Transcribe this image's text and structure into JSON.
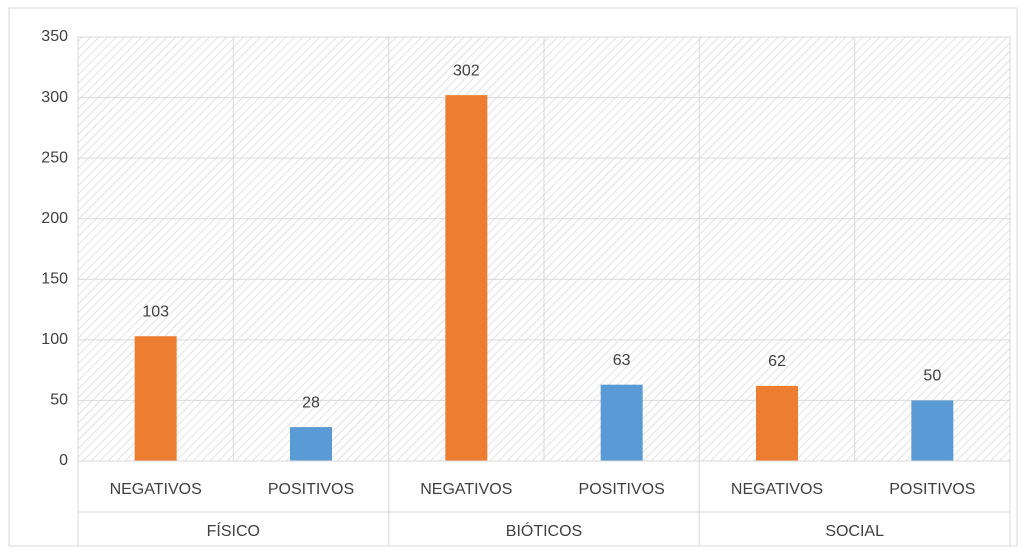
{
  "chart_data": {
    "type": "bar",
    "categories": [
      "NEGATIVOS",
      "POSITIVOS",
      "NEGATIVOS",
      "POSITIVOS",
      "NEGATIVOS",
      "POSITIVOS"
    ],
    "groups": [
      "FÍSICO",
      "BIÓTICOS",
      "SOCIAL"
    ],
    "values": [
      103,
      28,
      302,
      63,
      62,
      50
    ],
    "colors": [
      "#ed7d31",
      "#5b9bd5",
      "#ed7d31",
      "#5b9bd5",
      "#ed7d31",
      "#5b9bd5"
    ],
    "ylim": [
      0,
      350
    ],
    "yticks": [
      0,
      50,
      100,
      150,
      200,
      250,
      300,
      350
    ],
    "grid": true
  }
}
